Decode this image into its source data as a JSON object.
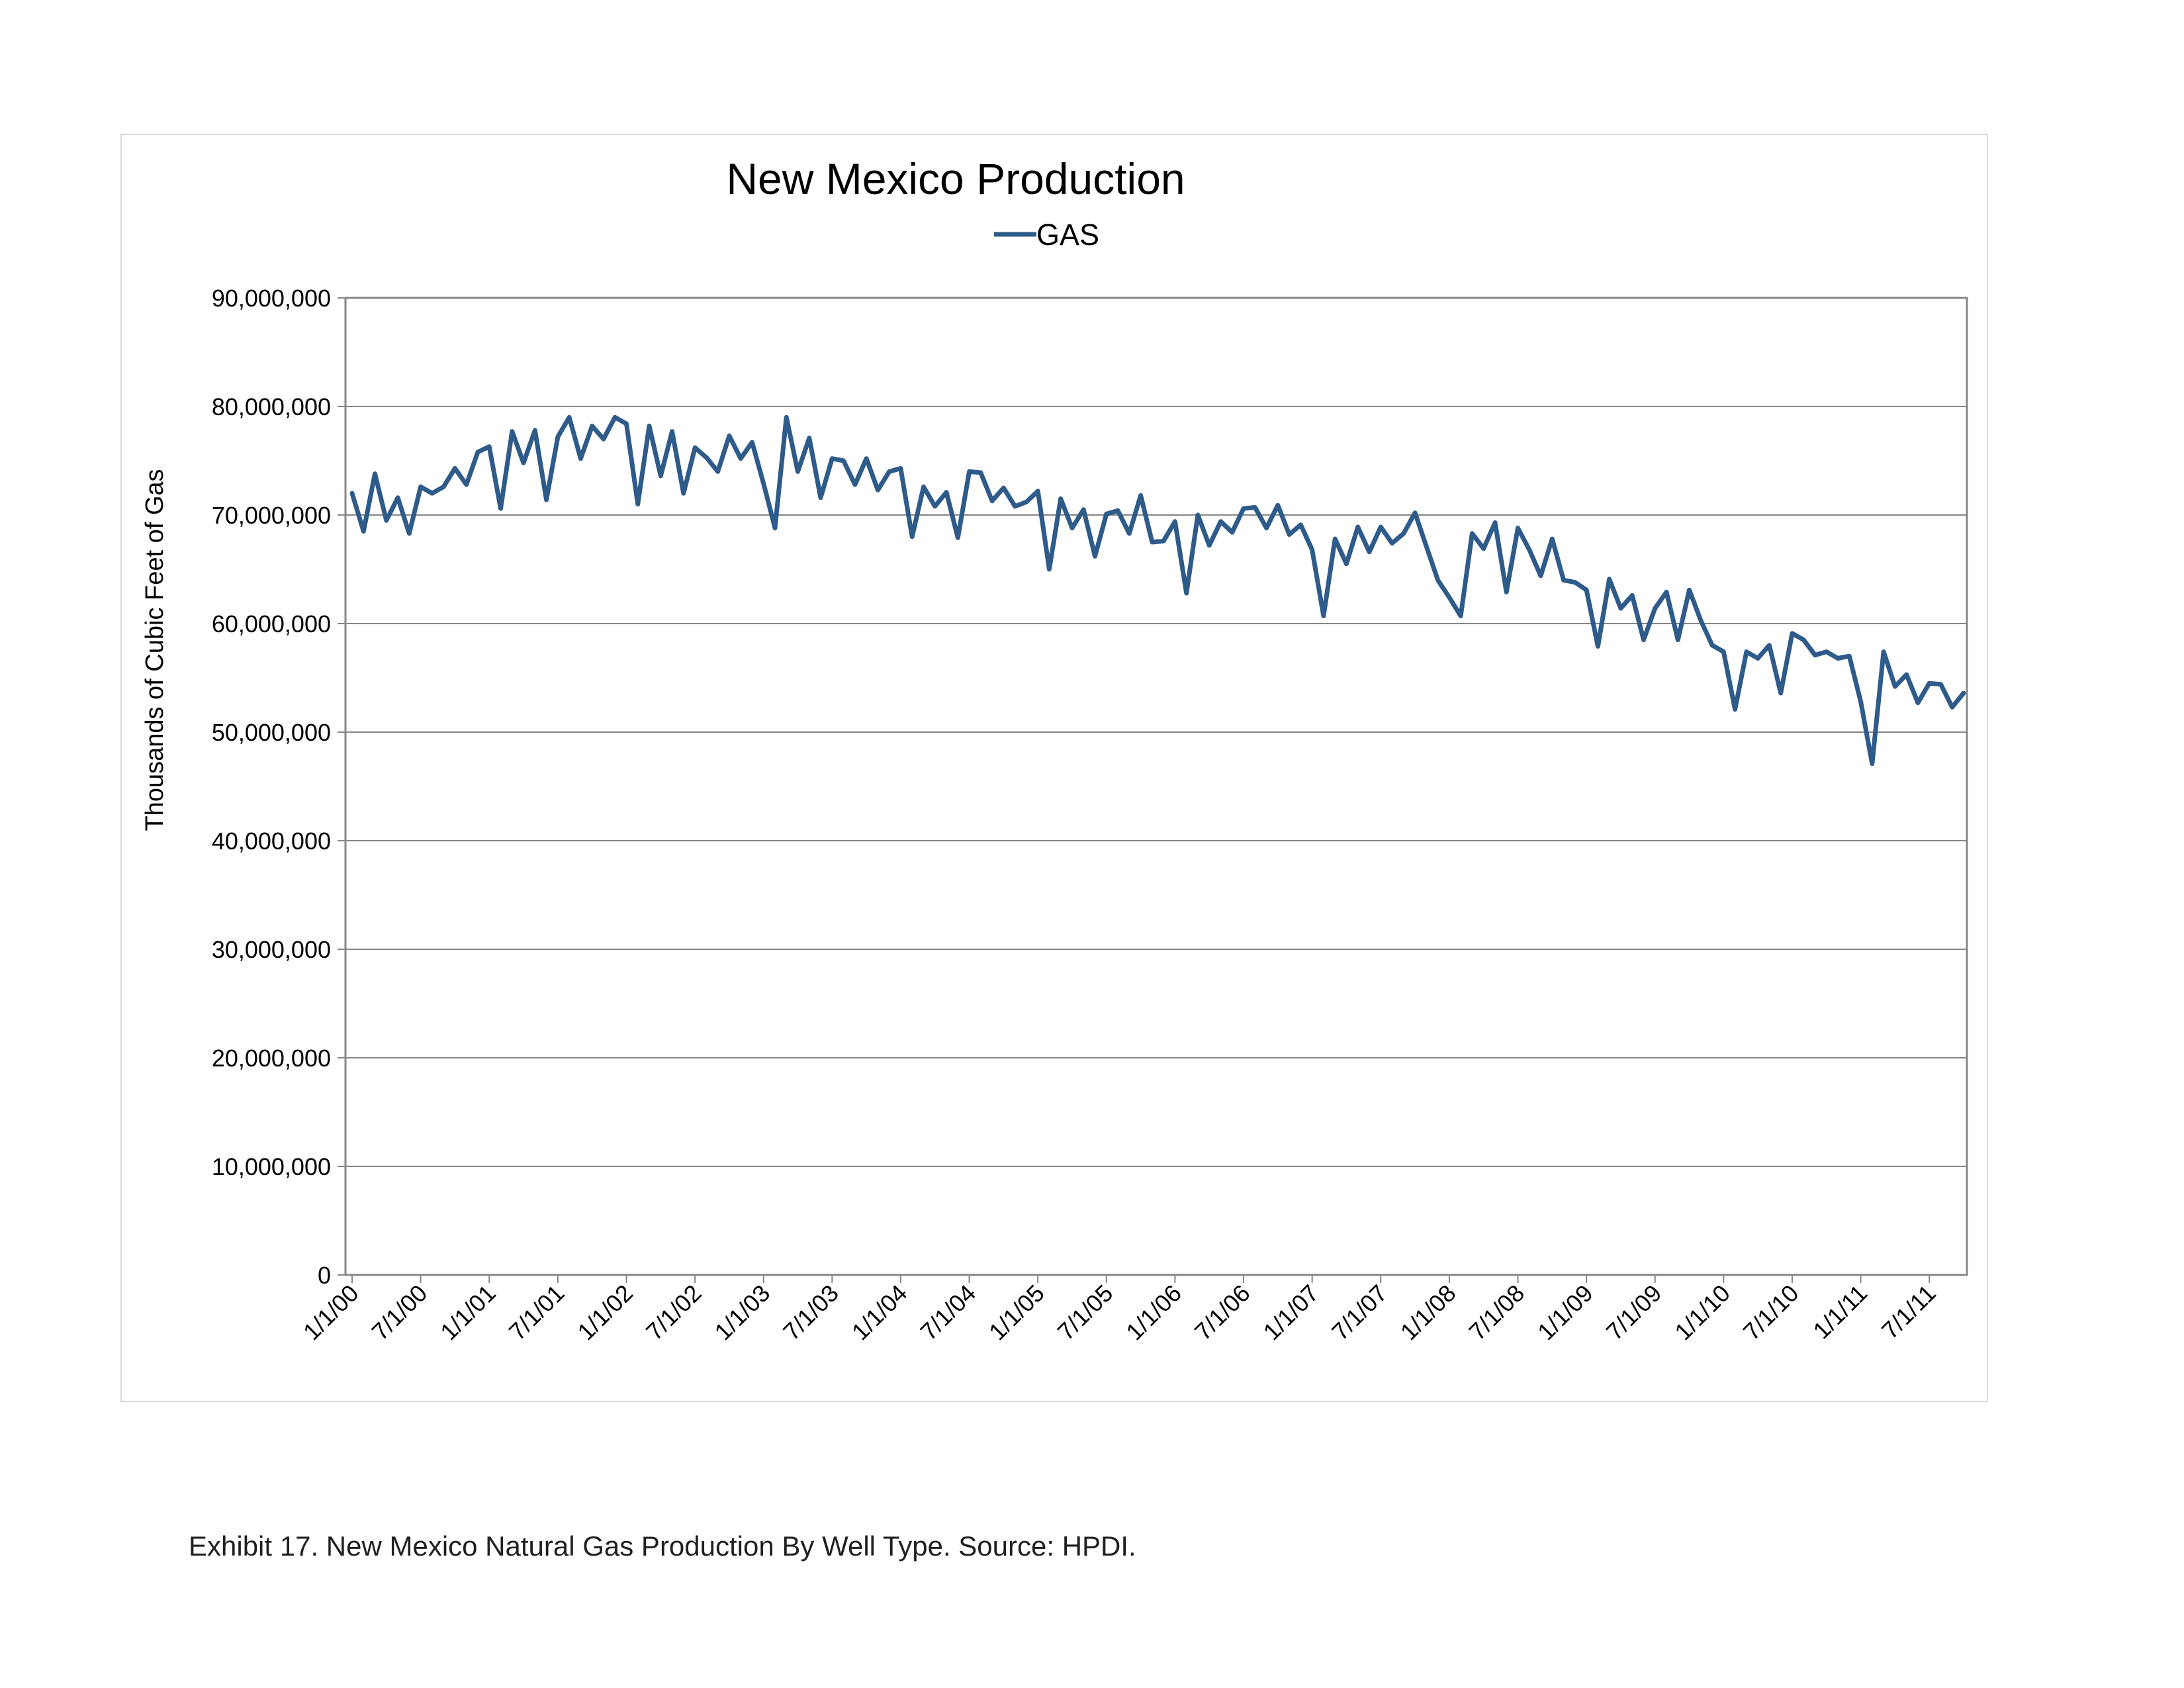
{
  "caption": "Exhibit 17. New Mexico Natural Gas Production By Well Type.   Source:  HPDI.",
  "colors": {
    "series": "#2e5b8a",
    "grid": "#868686",
    "axis": "#868686",
    "text": "#000000"
  },
  "chart_data": {
    "type": "line",
    "title": "New Mexico Production",
    "ylabel": "Thousands of Cubic Feet of Gas",
    "xlabel": "",
    "ylim": [
      0,
      90000000
    ],
    "y_ticks": [
      0,
      10000000,
      20000000,
      30000000,
      40000000,
      50000000,
      60000000,
      70000000,
      80000000,
      90000000
    ],
    "y_tick_labels": [
      "0",
      "10,000,000",
      "20,000,000",
      "30,000,000",
      "40,000,000",
      "50,000,000",
      "60,000,000",
      "70,000,000",
      "80,000,000",
      "90,000,000"
    ],
    "x_tick_labels": [
      "1/1/00",
      "7/1/00",
      "1/1/01",
      "7/1/01",
      "1/1/02",
      "7/1/02",
      "1/1/03",
      "7/1/03",
      "1/1/04",
      "7/1/04",
      "1/1/05",
      "7/1/05",
      "1/1/06",
      "7/1/06",
      "1/1/07",
      "7/1/07",
      "1/1/08",
      "7/1/08",
      "1/1/09",
      "7/1/09",
      "1/1/10",
      "7/1/10",
      "1/1/11",
      "7/1/11"
    ],
    "x_start": "1/1/00",
    "x_end": "12/1/11",
    "grid": true,
    "legend_position": "top-center",
    "series": [
      {
        "name": "GAS",
        "values": [
          72000000,
          68500000,
          73800000,
          69500000,
          71600000,
          68300000,
          72600000,
          72000000,
          72600000,
          74300000,
          72800000,
          75800000,
          76300000,
          70600000,
          77700000,
          74800000,
          77800000,
          71400000,
          77200000,
          79000000,
          75200000,
          78200000,
          77000000,
          79000000,
          78400000,
          71000000,
          78200000,
          73600000,
          77700000,
          72000000,
          76200000,
          75300000,
          74000000,
          77300000,
          75200000,
          76700000,
          72900000,
          68800000,
          79000000,
          74000000,
          77100000,
          71600000,
          75200000,
          75000000,
          72800000,
          75200000,
          72300000,
          74000000,
          74300000,
          68000000,
          72600000,
          70800000,
          72100000,
          67900000,
          74000000,
          73900000,
          71300000,
          72500000,
          70800000,
          71200000,
          72200000,
          65000000,
          71500000,
          68800000,
          70500000,
          66200000,
          70100000,
          70400000,
          68300000,
          71800000,
          67500000,
          67600000,
          69400000,
          62800000,
          70000000,
          67200000,
          69400000,
          68400000,
          70600000,
          70700000,
          68800000,
          70900000,
          68200000,
          69100000,
          66800000,
          60700000,
          67800000,
          65500000,
          68900000,
          66600000,
          68900000,
          67400000,
          68300000,
          70200000,
          67100000,
          64000000,
          62400000,
          60700000,
          68300000,
          66900000,
          69300000,
          62900000,
          68800000,
          66800000,
          64400000,
          67800000,
          64000000,
          63800000,
          63100000,
          57900000,
          64100000,
          61400000,
          62600000,
          58500000,
          61400000,
          62900000,
          58500000,
          63100000,
          60300000,
          58000000,
          57400000,
          52100000,
          57400000,
          56800000,
          58000000,
          53600000,
          59100000,
          58500000,
          57100000,
          57400000,
          56800000,
          57000000,
          52800000,
          47100000,
          57400000,
          54200000,
          55300000,
          52700000,
          54500000,
          54400000,
          52300000,
          53600000
        ]
      }
    ]
  }
}
